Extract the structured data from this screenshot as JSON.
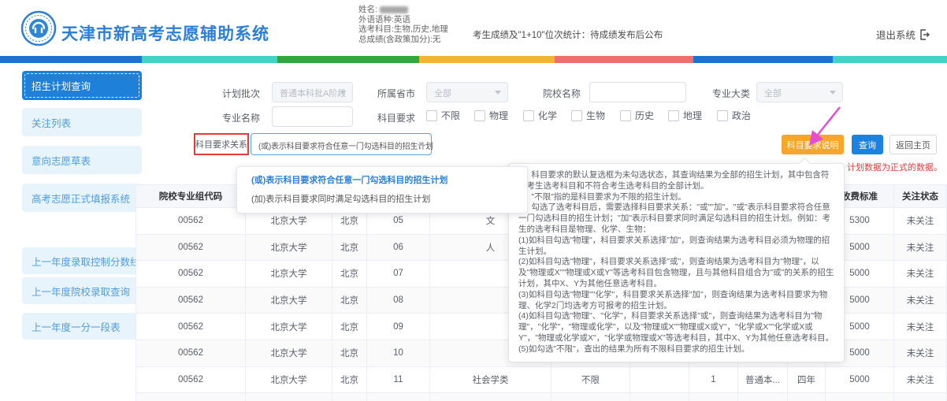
{
  "header": {
    "app_title": "天津市新高考志愿辅助系统",
    "student": {
      "name_label": "姓名:",
      "lang": "外语语种:英语",
      "subjects": "选考科目:生物,历史,地理",
      "total": "总成绩(含政策加分):无"
    },
    "score_notice": "考生成绩及\"1+10\"位次统计：待成绩发布后公布",
    "logout_label": "退出系统"
  },
  "accent_bar": {
    "colors": [
      "#1b74d3",
      "#3ed4c6",
      "#2fa93d",
      "#f4b52e",
      "#f26d6d",
      "#1b74d3",
      "#3ed4c6"
    ],
    "widths_pct": [
      15,
      14.3,
      15,
      14.3,
      14.6,
      14.7,
      12.1
    ]
  },
  "sidebar": {
    "items": [
      {
        "label": "招生计划查询",
        "active": true
      },
      {
        "label": "关注列表",
        "active": false
      },
      {
        "label": "意向志愿草表",
        "active": false
      },
      {
        "label": "高考志愿正式填报系统",
        "active": false
      },
      {
        "label": "上一年度录取控制分数线",
        "active": false
      },
      {
        "label": "上一年度院校录取查询",
        "active": false
      },
      {
        "label": "上一年度一分一段表",
        "active": false
      }
    ]
  },
  "filters": {
    "plan_batch": {
      "label": "计划批次",
      "value": "普通本科批A阶段",
      "disabled": true
    },
    "province": {
      "label": "所属省市",
      "value": "全部",
      "disabled": true
    },
    "college_name": {
      "label": "院校名称",
      "value": ""
    },
    "major_category": {
      "label": "专业大类",
      "value": "全部",
      "disabled": true
    },
    "major_name": {
      "label": "专业名称",
      "value": ""
    },
    "subject_req": {
      "label": "科目要求",
      "options": [
        "不限",
        "物理",
        "化学",
        "生物",
        "历史",
        "地理",
        "政治"
      ]
    },
    "relation": {
      "label": "科目要求关系",
      "value": "(或)表示科目要求符合任意一门勾选科目的招生计划"
    }
  },
  "actions": {
    "subject_help": "科目要求说明",
    "query": "查询",
    "back_home": "返回主页"
  },
  "red_notice": "计划数据为正式的数据。",
  "relation_dropdown": {
    "options": [
      {
        "text": "(或)表示科目要求符合任意一门勾选科目的招生计划",
        "selected": true
      },
      {
        "text": "(加)表示科目要求同时满足勾选科目的招生计划",
        "selected": false
      }
    ]
  },
  "help_popover": {
    "lines": [
      "1、科目要求的默认复选框为未勾选状态，其查询结果为全部的招生计划，其中包含符合考生选考科目和不符合考生选考科目的全部计划。",
      "2、\"不限\"指的是科目要求为不限的招生计划。",
      "3、勾选了选考科目后，需要选择科目要求关系：\"或\"\"加\"。\"或\"表示科目要求符合任意一门勾选科目的招生计划；\"加\"表示科目要求同时满足勾选科目的招生计划。例如：考生的选考科目是物理、化学、生物：",
      "(1)如科目勾选\"物理\"，科目要求关系选择\"加\"，则查询结果为选考科目必须为物理的招生计划。",
      "(2)如科目勾选\"物理\"，科目要求关系选择\"或\"，则查询结果为选考科目为\"物理\"，以及\"物理或X\"\"物理或X或Y\"等选考科目包含物理，且与其他科目组合为\"或\"的关系的招生计划，其中X、Y为其他任意选考科目。",
      "(3)如科目勾选\"物理\"\"化学\"，科目要求关系选择\"加\"，则查询结果为选考科目要求为物理、化学2门均选考方可报考的招生计划。",
      "(4)如科目勾选\"物理\"、\"化学\"，科目要求关系选择\"或\"，则查询结果为选考科目为\"物理\"，\"化学\"，\"物理或化学\"，以及\"物理或X\"\"物理或X或Y\"，\"化学或X\"\"化学或X或Y\"，\"物理或化学或X\"，\"化学或物理或X\"等选考科目，其中X、Y为其他任意选考科目。",
      "(5)如勾选\"不限\"，查出的结果为所有不限科目要求的招生计划。"
    ]
  },
  "table": {
    "headers": [
      "院校专业组代码",
      "",
      "",
      "",
      "",
      "",
      "",
      "",
      "",
      "",
      "收费标准",
      "关注状态"
    ],
    "rows": [
      [
        "00562",
        "北京大学",
        "北京",
        "05",
        "文",
        "",
        "",
        "",
        "",
        "",
        "5300",
        "未关注"
      ],
      [
        "00562",
        "北京大学",
        "北京",
        "06",
        "人",
        "",
        "",
        "",
        "",
        "",
        "5000",
        "未关注"
      ],
      [
        "00562",
        "北京大学",
        "北京",
        "07",
        "",
        "",
        "",
        "",
        "",
        "",
        "5000",
        "未关注"
      ],
      [
        "00562",
        "北京大学",
        "北京",
        "08",
        "",
        "",
        "",
        "",
        "",
        "",
        "5000",
        "未关注"
      ],
      [
        "00562",
        "北京大学",
        "北京",
        "09",
        "",
        "",
        "",
        "",
        "",
        "",
        "5000",
        "未关注"
      ],
      [
        "00562",
        "北京大学",
        "北京",
        "10",
        "",
        "",
        "",
        "",
        "",
        "",
        "5000",
        "未关注"
      ],
      [
        "00562",
        "北京大学",
        "北京",
        "11",
        "社会学类",
        "不限",
        "",
        "1",
        "普通本...",
        "四年",
        "5000",
        "未关注"
      ],
      [
        "",
        "",
        "",
        "",
        "",
        "",
        "",
        "",
        "",
        "",
        "",
        ""
      ]
    ]
  }
}
